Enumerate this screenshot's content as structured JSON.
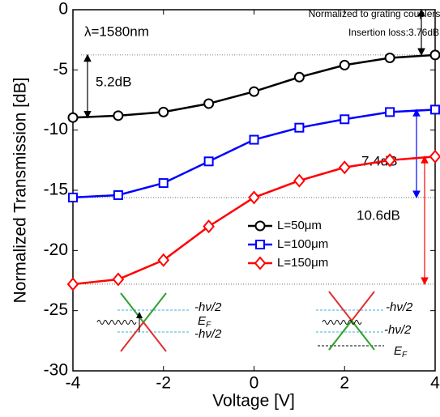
{
  "chart_data": {
    "type": "line",
    "xlabel": "Voltage [V]",
    "ylabel": "Normalized Transmission [dB]",
    "x": [
      -4,
      -3,
      -2,
      -1,
      0,
      1,
      2,
      3,
      4
    ],
    "xlim": [
      -4,
      4
    ],
    "xticks": [
      -4,
      -2,
      0,
      2,
      4
    ],
    "ylim": [
      -30,
      0
    ],
    "yticks": [
      -30,
      -25,
      -20,
      -15,
      -10,
      -5,
      0
    ],
    "series": [
      {
        "name": "L=50μm",
        "color": "#000000",
        "marker": "circle",
        "values": [
          -8.96,
          -8.8,
          -8.5,
          -7.8,
          -6.8,
          -5.6,
          -4.6,
          -4.0,
          -3.76
        ]
      },
      {
        "name": "L=100μm",
        "color": "#0000ff",
        "marker": "square",
        "values": [
          -15.6,
          -15.4,
          -14.4,
          -12.6,
          -10.8,
          -9.8,
          -9.1,
          -8.5,
          -8.3
        ]
      },
      {
        "name": "L=150μm",
        "color": "#ff0000",
        "marker": "diamond",
        "values": [
          -22.8,
          -22.4,
          -20.8,
          -18.0,
          -15.6,
          -14.2,
          -13.1,
          -12.5,
          -12.2
        ]
      }
    ],
    "annotations": [
      "λ=1580nm",
      "Normalized to grating couplers",
      "Insertion loss:3.76dB",
      "5.2dB",
      "7.4dB",
      "10.6dB"
    ],
    "insets": [
      {
        "labels": [
          "-hν/2",
          "E",
          "F",
          "-hν/2"
        ]
      },
      {
        "labels": [
          "-hν/2",
          "-hν/2",
          "E",
          "F"
        ]
      }
    ]
  }
}
